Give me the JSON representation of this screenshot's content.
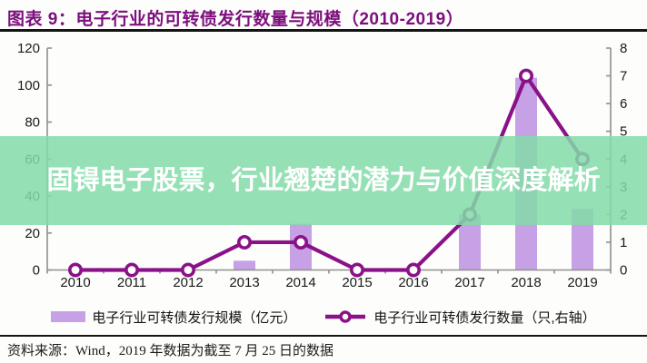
{
  "header": {
    "title": "图表 9：电子行业的可转债发行数量与规模（2010-2019）"
  },
  "watermark": {
    "text": "固锝电子股票，行业翘楚的潜力与价值深度解析"
  },
  "chart_data": {
    "type": "combo-bar-line",
    "categories": [
      "2010",
      "2011",
      "2012",
      "2013",
      "2014",
      "2015",
      "2016",
      "2017",
      "2018",
      "2019"
    ],
    "series": [
      {
        "name": "电子行业可转债发行规模（亿元）",
        "type": "bar",
        "axis": "left",
        "color": "#c7a1e6",
        "values": [
          0,
          0,
          0,
          5,
          25,
          0,
          0,
          30,
          104,
          33
        ]
      },
      {
        "name": "电子行业可转债发行数量（只,右轴）",
        "type": "line",
        "axis": "right",
        "color": "#8a1289",
        "marker": "open-circle",
        "values": [
          0,
          0,
          0,
          1,
          1,
          0,
          0,
          2,
          7,
          4
        ]
      }
    ],
    "left_axis": {
      "ticks": [
        0,
        20,
        40,
        60,
        80,
        100,
        120
      ],
      "ylim": [
        0,
        120
      ]
    },
    "right_axis": {
      "ticks": [
        0,
        1,
        2,
        3,
        4,
        5,
        6,
        7,
        8
      ],
      "ylim": [
        0,
        8
      ]
    },
    "grid": false,
    "legend_position": "bottom"
  },
  "source": {
    "text": "资料来源：Wind，2019 年数据为截至 7 月 25 日的数据"
  },
  "colors": {
    "title": "#7c0f7e",
    "axis": "#8f8f8f",
    "tick_text": "#1a1a1a",
    "watermark_bg": "#82dca8",
    "watermark_text": "#ffffff",
    "rule": "#151515"
  }
}
